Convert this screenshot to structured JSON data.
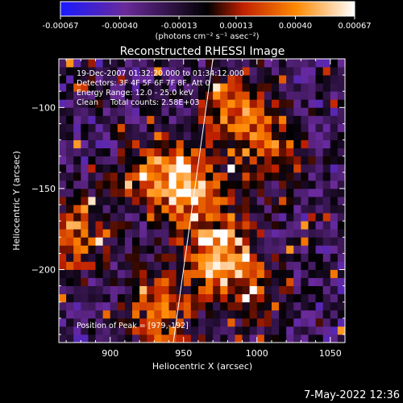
{
  "chart_data": {
    "type": "heatmap",
    "title": "Reconstructed RHESSI Image",
    "xlabel": "Heliocentric X (arcsec)",
    "ylabel": "Heliocentric Y (arcsec)",
    "xlim": [
      865,
      1060
    ],
    "ylim": [
      -245,
      -70
    ],
    "x_ticks": [
      900,
      950,
      1000,
      1050
    ],
    "y_ticks": [
      -100,
      -150,
      -200
    ],
    "colorbar": {
      "min": -0.00067,
      "max": 0.00067,
      "tick_values": [
        -0.00067,
        -0.0004,
        -0.00013,
        0.00013,
        0.0004,
        0.00067
      ],
      "tick_labels": [
        "-0.00067",
        "-0.00040",
        "-0.00013",
        "0.00013",
        "0.00040",
        "0.00067"
      ],
      "units": "(photons cm⁻² s⁻¹ asec⁻²)",
      "colors": [
        "#1a1aff",
        "#6a2a9a",
        "#000000",
        "#c02000",
        "#ff8800",
        "#ffffff"
      ]
    },
    "info_lines": [
      "19-Dec-2007 01:32:20.000 to 01:34:12.000",
      "Detectors: 3F 4F 5F 6F 7F 8F, Att 0",
      "Energy Range: 12.0 - 25.0 keV",
      "Clean     Total counts: 2.58E+03"
    ],
    "peak_label": "Position of Peak = [979,-192]",
    "peak": [
      979,
      -192
    ],
    "limb_line": [
      [
        970,
        -70
      ],
      [
        943,
        -245
      ]
    ],
    "bright_sources": [
      {
        "x": 975,
        "y": -190,
        "level": 1.0
      },
      {
        "x": 955,
        "y": -150,
        "level": 0.85
      },
      {
        "x": 930,
        "y": -140,
        "level": 0.6
      },
      {
        "x": 985,
        "y": -100,
        "level": 0.75
      },
      {
        "x": 1010,
        "y": -125,
        "level": 0.55
      },
      {
        "x": 935,
        "y": -225,
        "level": 0.7
      },
      {
        "x": 875,
        "y": -180,
        "level": 0.6
      },
      {
        "x": 1000,
        "y": -215,
        "level": 0.4
      }
    ]
  },
  "footer": {
    "date": "7-May-2022 12:36"
  }
}
